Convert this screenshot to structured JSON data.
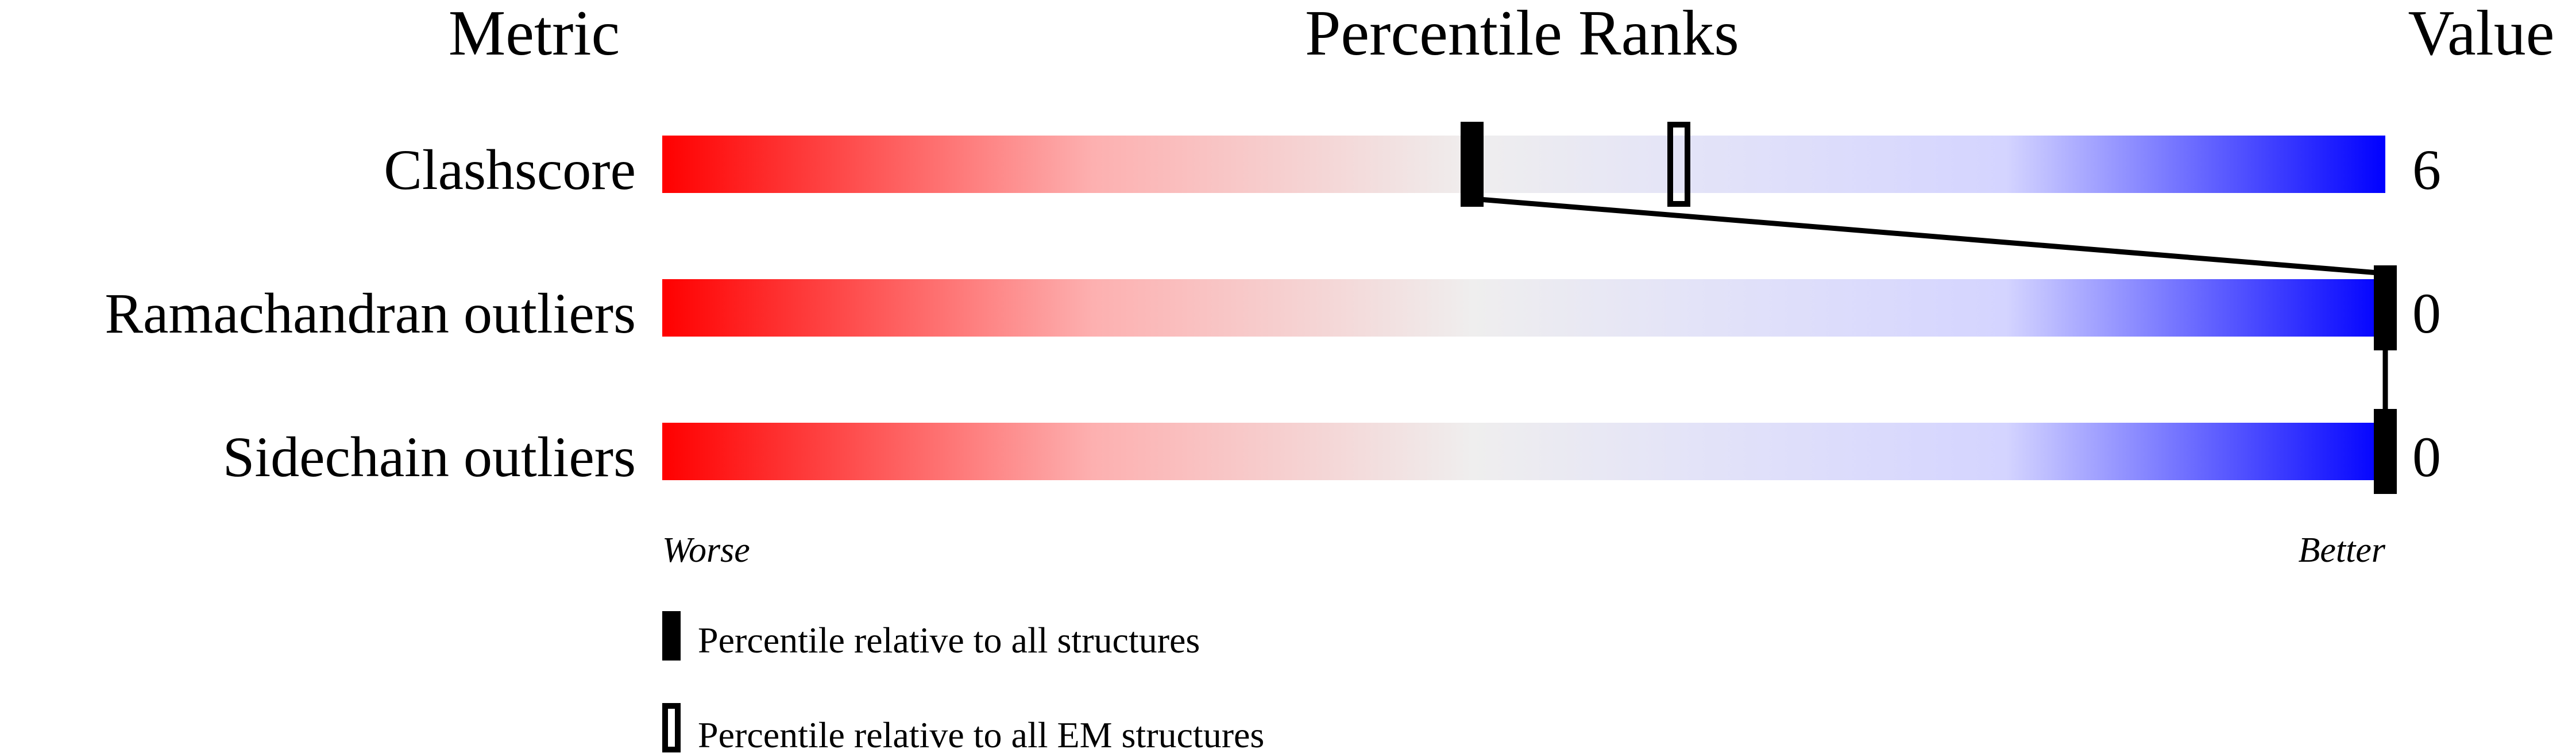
{
  "chart_data": {
    "type": "percentile_bar",
    "headers": {
      "metric": "Metric",
      "ranks": "Percentile Ranks",
      "value": "Value"
    },
    "xlim": [
      0,
      100
    ],
    "axis_labels": {
      "left": "Worse",
      "right": "Better"
    },
    "gradient_colors": [
      "#ff0000",
      "#eeeeee",
      "#0000ff"
    ],
    "rows": [
      {
        "metric": "Clashscore",
        "value": "6",
        "percentile_all": 47,
        "percentile_em": 59
      },
      {
        "metric": "Ramachandran outliers",
        "value": "0",
        "percentile_all": 100,
        "percentile_em": null
      },
      {
        "metric": "Sidechain outliers",
        "value": "0",
        "percentile_all": 100,
        "percentile_em": null
      }
    ],
    "legend": [
      {
        "marker": "filled",
        "label": "Percentile relative to all structures"
      },
      {
        "marker": "hollow",
        "label": "Percentile relative to all EM structures"
      }
    ]
  }
}
